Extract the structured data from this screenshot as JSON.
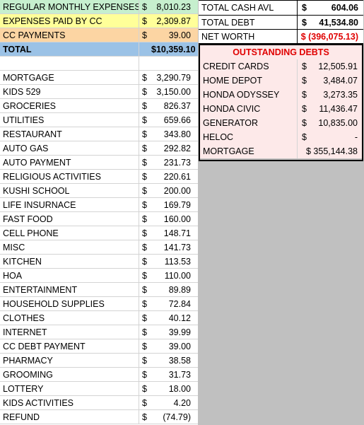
{
  "summary_left": [
    {
      "label": "REGULAR MONTHLY EXPENSES",
      "dollar": "$",
      "value": "8,010.23",
      "color": "#c6efce"
    },
    {
      "label": "EXPENSES PAID BY CC",
      "dollar": "$",
      "value": "2,309.87",
      "color": "#ffff99"
    },
    {
      "label": "CC PAYMENTS",
      "dollar": "$",
      "value": "39.00",
      "color": "#fcd5a3"
    },
    {
      "label": "TOTAL",
      "dollar": "",
      "value": "$10,359.10",
      "color": "#9bc2e6"
    }
  ],
  "expenses": [
    {
      "label": "MORTGAGE",
      "dollar": "$",
      "value": "3,290.79"
    },
    {
      "label": "KIDS 529",
      "dollar": "$",
      "value": "3,150.00"
    },
    {
      "label": "GROCERIES",
      "dollar": "$",
      "value": "826.37"
    },
    {
      "label": "UTILITIES",
      "dollar": "$",
      "value": "659.66"
    },
    {
      "label": "RESTAURANT",
      "dollar": "$",
      "value": "343.80"
    },
    {
      "label": "AUTO GAS",
      "dollar": "$",
      "value": "292.82"
    },
    {
      "label": "AUTO PAYMENT",
      "dollar": "$",
      "value": "231.73"
    },
    {
      "label": "RELIGIOUS ACTIVITIES",
      "dollar": "$",
      "value": "220.61"
    },
    {
      "label": "KUSHI SCHOOL",
      "dollar": "$",
      "value": "200.00"
    },
    {
      "label": "LIFE INSURNACE",
      "dollar": "$",
      "value": "169.79"
    },
    {
      "label": "FAST FOOD",
      "dollar": "$",
      "value": "160.00"
    },
    {
      "label": "CELL PHONE",
      "dollar": "$",
      "value": "148.71"
    },
    {
      "label": "MISC",
      "dollar": "$",
      "value": "141.73"
    },
    {
      "label": "KITCHEN",
      "dollar": "$",
      "value": "113.53"
    },
    {
      "label": "HOA",
      "dollar": "$",
      "value": "110.00"
    },
    {
      "label": "ENTERTAINMENT",
      "dollar": "$",
      "value": "89.89"
    },
    {
      "label": "HOUSEHOLD SUPPLIES",
      "dollar": "$",
      "value": "72.84"
    },
    {
      "label": "CLOTHES",
      "dollar": "$",
      "value": "40.12"
    },
    {
      "label": "INTERNET",
      "dollar": "$",
      "value": "39.99"
    },
    {
      "label": "CC DEBT PAYMENT",
      "dollar": "$",
      "value": "39.00"
    },
    {
      "label": "PHARMACY",
      "dollar": "$",
      "value": "38.58"
    },
    {
      "label": "GROOMING",
      "dollar": "$",
      "value": "31.73"
    },
    {
      "label": "LOTTERY",
      "dollar": "$",
      "value": "18.00"
    },
    {
      "label": "KIDS ACTIVITIES",
      "dollar": "$",
      "value": "4.20"
    },
    {
      "label": "REFUND",
      "dollar": "$",
      "value": "(74.79)"
    }
  ],
  "summary_right": [
    {
      "label": "TOTAL CASH AVL",
      "dollar": "$",
      "value": "604.06"
    },
    {
      "label": "TOTAL DEBT",
      "dollar": "$",
      "value": "41,534.80"
    },
    {
      "label": "NET WORTH",
      "dollar": "",
      "value": "$ (396,075.13)"
    }
  ],
  "outstanding_title": "OUTSTANDING DEBTS",
  "debts": [
    {
      "label": "CREDIT CARDS",
      "dollar": "$",
      "value": "12,505.91"
    },
    {
      "label": "HOME DEPOT",
      "dollar": "$",
      "value": "3,484.07"
    },
    {
      "label": "HONDA ODYSSEY",
      "dollar": "$",
      "value": "3,273.35"
    },
    {
      "label": "HONDA CIVIC",
      "dollar": "$",
      "value": "11,436.47"
    },
    {
      "label": "GENERATOR",
      "dollar": "$",
      "value": "10,835.00"
    },
    {
      "label": "HELOC",
      "dollar": "$",
      "value": "-"
    },
    {
      "label": "MORTGAGE",
      "dollar": "",
      "value": "$ 355,144.38"
    }
  ],
  "colors": {
    "net_worth": "#e00000",
    "outstanding_header": "#e00000",
    "debt_bg": "#fde9e9",
    "sheet_bg": "#c0c0c0"
  }
}
